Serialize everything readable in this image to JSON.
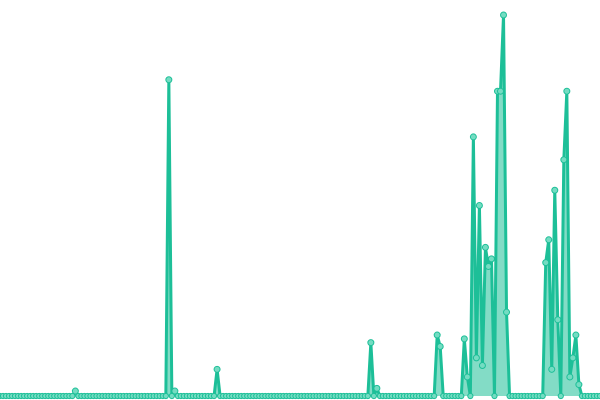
{
  "chart_data": {
    "type": "line",
    "title": "",
    "xlabel": "",
    "ylabel": "",
    "grid": false,
    "axes_visible": false,
    "ylim": [
      0,
      100
    ],
    "line_color": "#1dbf98",
    "marker_fill": "#74dcc2",
    "area_fill": "#1dbf98",
    "series": [
      {
        "values": [
          0,
          0,
          0,
          0,
          0,
          0,
          0,
          0,
          0,
          0,
          0,
          0,
          0,
          0,
          0,
          0,
          0,
          0,
          0,
          0,
          0,
          0,
          0,
          0,
          0,
          1.3,
          0,
          0,
          0,
          0,
          0,
          0,
          0,
          0,
          0,
          0,
          0,
          0,
          0,
          0,
          0,
          0,
          0,
          0,
          0,
          0,
          0,
          0,
          0,
          0,
          0,
          0,
          0,
          0,
          0,
          0,
          83,
          0,
          1.3,
          0,
          0,
          0,
          0,
          0,
          0,
          0,
          0,
          0,
          0,
          0,
          0,
          0,
          7,
          0,
          0,
          0,
          0,
          0,
          0,
          0,
          0,
          0,
          0,
          0,
          0,
          0,
          0,
          0,
          0,
          0,
          0,
          0,
          0,
          0,
          0,
          0,
          0,
          0,
          0,
          0,
          0,
          0,
          0,
          0,
          0,
          0,
          0,
          0,
          0,
          0,
          0,
          0,
          0,
          0,
          0,
          0,
          0,
          0,
          0,
          0,
          0,
          0,
          0,
          14,
          0,
          2,
          0,
          0,
          0,
          0,
          0,
          0,
          0,
          0,
          0,
          0,
          0,
          0,
          0,
          0,
          0,
          0,
          0,
          0,
          0,
          16,
          13,
          0,
          0,
          0,
          0,
          0,
          0,
          0,
          15,
          5,
          0,
          68,
          10,
          50,
          8,
          39,
          34,
          36,
          0,
          80,
          80,
          100,
          22,
          0,
          0,
          0,
          0,
          0,
          0,
          0,
          0,
          0,
          0,
          0,
          0,
          35,
          41,
          7,
          54,
          20,
          0,
          62,
          80,
          5,
          10,
          16,
          3,
          0,
          0,
          0,
          0,
          0,
          0,
          0
        ]
      }
    ]
  }
}
